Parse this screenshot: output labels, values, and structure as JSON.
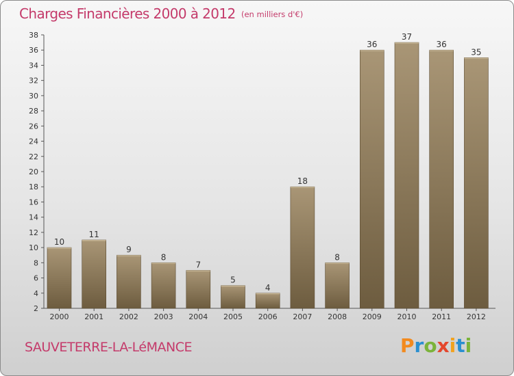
{
  "header": {
    "title": "Charges Financières 2000 à 2012",
    "subtitle": "(en milliers d'€)"
  },
  "footer": {
    "commune": "SAUVETERRE-LA-LéMANCE",
    "logo_text": "Proxiti"
  },
  "colors": {
    "bar_light": "#a99676",
    "bar_dark": "#6d5c3f",
    "title": "#c43a6a",
    "logo_letters": [
      "#f28a1e",
      "#2a8fd0",
      "#7bb33a",
      "#e4462c",
      "#f2a21e",
      "#2a8fd0",
      "#7bb33a"
    ]
  },
  "chart_data": {
    "type": "bar",
    "categories": [
      "2000",
      "2001",
      "2002",
      "2003",
      "2004",
      "2005",
      "2006",
      "2007",
      "2008",
      "2009",
      "2010",
      "2011",
      "2012"
    ],
    "values": [
      10,
      11,
      9,
      8,
      7,
      5,
      4,
      18,
      8,
      36,
      37,
      36,
      35
    ],
    "ylim": [
      2,
      38
    ],
    "yticks": [
      2,
      4,
      6,
      8,
      10,
      12,
      14,
      16,
      18,
      20,
      22,
      24,
      26,
      28,
      30,
      32,
      34,
      36,
      38
    ],
    "grid": false,
    "data_labels": true
  }
}
